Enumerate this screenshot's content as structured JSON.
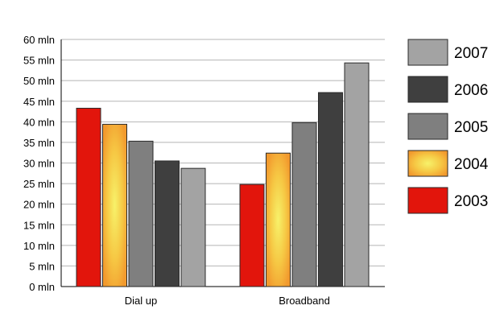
{
  "chart_data": {
    "type": "bar",
    "categories": [
      "Dial up",
      "Broadband"
    ],
    "y_tick_labels": [
      "0 mln",
      "5 mln",
      "10 mln",
      "15 mln",
      "20 mln",
      "25 mln",
      "30 mln",
      "35 mln",
      "40 mln",
      "45 mln",
      "50 mln",
      "55 mln",
      "60 mln"
    ],
    "ylim": [
      0,
      60
    ],
    "y_unit": "mln",
    "grid": true,
    "legend_position": "right",
    "series": [
      {
        "name": "2003",
        "values": [
          43.3,
          24.8
        ],
        "color": "#e2150c",
        "style": "solid"
      },
      {
        "name": "2004",
        "values": [
          39.4,
          32.4
        ],
        "color": "#f6a23a",
        "style": "radial-glow"
      },
      {
        "name": "2005",
        "values": [
          35.3,
          39.8
        ],
        "color": "#7f7f7f",
        "style": "solid"
      },
      {
        "name": "2006",
        "values": [
          30.5,
          47.1
        ],
        "color": "#3f3f3f",
        "style": "solid"
      },
      {
        "name": "2007",
        "values": [
          28.7,
          54.3
        ],
        "color": "#a3a3a3",
        "style": "solid"
      }
    ],
    "legend_order": [
      "2007",
      "2006",
      "2005",
      "2004",
      "2003"
    ]
  }
}
